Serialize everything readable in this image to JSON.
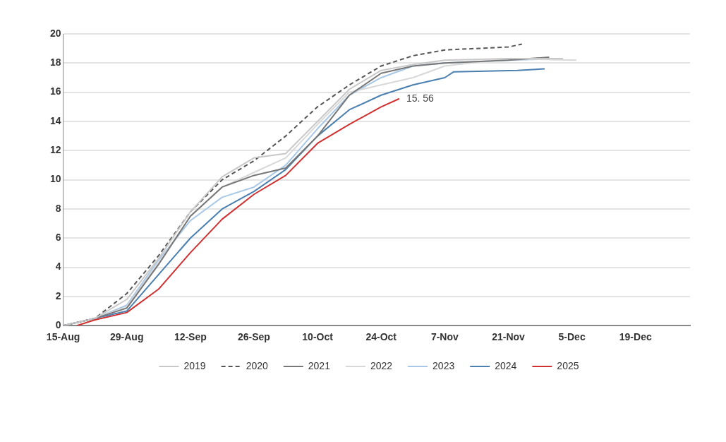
{
  "chart_data": {
    "type": "line",
    "xlim": [
      "--08-15",
      "--12-31"
    ],
    "xticks": [
      {
        "value": "--08-15",
        "label": "15-Aug"
      },
      {
        "value": "--08-29",
        "label": "29-Aug"
      },
      {
        "value": "--09-12",
        "label": "12-Sep"
      },
      {
        "value": "--09-26",
        "label": "26-Sep"
      },
      {
        "value": "--10-10",
        "label": "10-Oct"
      },
      {
        "value": "--10-24",
        "label": "24-Oct"
      },
      {
        "value": "--11-07",
        "label": "7-Nov"
      },
      {
        "value": "--11-21",
        "label": "21-Nov"
      },
      {
        "value": "--12-05",
        "label": "5-Dec"
      },
      {
        "value": "--12-19",
        "label": "19-Dec"
      }
    ],
    "ylim": [
      0,
      20
    ],
    "yticks": [
      0,
      2,
      4,
      6,
      8,
      10,
      12,
      14,
      16,
      18,
      20
    ],
    "grid": "y",
    "legend": "bottom",
    "marker": "none",
    "annotations": [
      {
        "text": "15. 56",
        "x": "--10-28",
        "y": 15.56
      }
    ],
    "series": [
      {
        "name": "2019",
        "color": "#c8c8c8",
        "line_style": "solid",
        "x": [
          "--08-15",
          "--08-22",
          "--08-29",
          "--09-05",
          "--09-12",
          "--09-19",
          "--09-26",
          "--10-03",
          "--10-10",
          "--10-17",
          "--10-24",
          "--10-31",
          "--11-07",
          "--11-21",
          "--12-03"
        ],
        "values": [
          0,
          0.5,
          1.8,
          4.6,
          7.8,
          10.2,
          11.5,
          11.8,
          14.0,
          16.2,
          17.5,
          17.9,
          18.2,
          18.3,
          18.3
        ]
      },
      {
        "name": "2020",
        "color": "#555555",
        "line_style": "dashed",
        "x": [
          "--08-15",
          "--08-22",
          "--08-29",
          "--09-05",
          "--09-12",
          "--09-19",
          "--09-26",
          "--10-03",
          "--10-10",
          "--10-17",
          "--10-24",
          "--10-31",
          "--11-07",
          "--11-21",
          "--11-24"
        ],
        "values": [
          0,
          0.5,
          2.2,
          4.8,
          7.8,
          10.0,
          11.3,
          13.0,
          15.0,
          16.5,
          17.8,
          18.5,
          18.9,
          19.1,
          19.3
        ]
      },
      {
        "name": "2021",
        "color": "#777777",
        "line_style": "solid",
        "x": [
          "--08-15",
          "--08-22",
          "--08-29",
          "--09-05",
          "--09-12",
          "--09-19",
          "--09-26",
          "--10-03",
          "--10-10",
          "--10-17",
          "--10-24",
          "--10-31",
          "--11-07",
          "--11-21",
          "--11-30"
        ],
        "values": [
          0,
          0.5,
          1.2,
          4.2,
          7.5,
          9.5,
          10.3,
          10.8,
          13.0,
          15.8,
          17.3,
          17.8,
          18.0,
          18.2,
          18.4
        ]
      },
      {
        "name": "2022",
        "color": "#d8d8d8",
        "line_style": "solid",
        "x": [
          "--08-15",
          "--08-22",
          "--08-29",
          "--09-05",
          "--09-12",
          "--09-19",
          "--09-26",
          "--10-03",
          "--10-10",
          "--10-17",
          "--10-24",
          "--10-31",
          "--11-07",
          "--11-21",
          "--12-06"
        ],
        "values": [
          0,
          0.5,
          1.3,
          4.3,
          7.5,
          9.5,
          10.5,
          11.5,
          13.8,
          16.0,
          16.5,
          17.0,
          17.8,
          18.3,
          18.2
        ]
      },
      {
        "name": "2023",
        "color": "#a8c8e8",
        "line_style": "solid",
        "x": [
          "--08-15",
          "--08-22",
          "--08-29",
          "--09-05",
          "--09-12",
          "--09-19",
          "--09-26",
          "--10-03",
          "--10-10",
          "--10-17",
          "--10-24",
          "--10-31",
          "--11-07",
          "--11-21",
          "--12-03"
        ],
        "values": [
          0,
          0.5,
          1.4,
          4.5,
          7.2,
          8.8,
          9.5,
          11.0,
          13.5,
          15.8,
          17.0,
          17.8,
          18.0,
          18.2,
          18.3
        ]
      },
      {
        "name": "2024",
        "color": "#4a7fb0",
        "line_style": "solid",
        "x": [
          "--08-15",
          "--08-22",
          "--08-29",
          "--09-05",
          "--09-12",
          "--09-19",
          "--09-26",
          "--10-03",
          "--10-10",
          "--10-17",
          "--10-24",
          "--10-31",
          "--11-07",
          "--11-09",
          "--11-23",
          "--11-29"
        ],
        "values": [
          0,
          0.5,
          1.0,
          3.5,
          6.0,
          8.0,
          9.2,
          10.7,
          13.0,
          14.8,
          15.8,
          16.5,
          17.0,
          17.4,
          17.5,
          17.6
        ]
      },
      {
        "name": "2025",
        "color": "#d03030",
        "line_style": "solid",
        "x": [
          "--08-18",
          "--08-22",
          "--08-29",
          "--09-05",
          "--09-12",
          "--09-19",
          "--09-26",
          "--10-03",
          "--10-10",
          "--10-17",
          "--10-24",
          "--10-28"
        ],
        "values": [
          0,
          0.4,
          0.9,
          2.5,
          5.0,
          7.3,
          9.0,
          10.3,
          12.5,
          13.8,
          15.0,
          15.56
        ]
      }
    ]
  }
}
